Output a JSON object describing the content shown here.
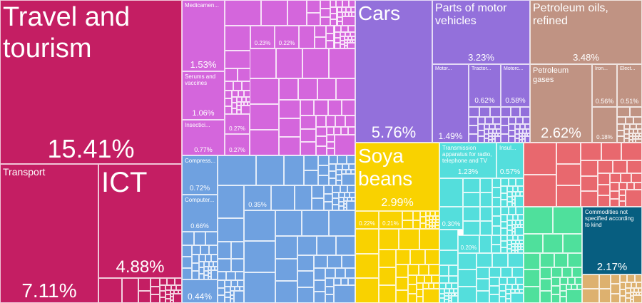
{
  "chart_data": {
    "type": "treemap",
    "unit": "%",
    "items": [
      {
        "label": "Travel and tourism",
        "value": 15.41,
        "color": "#C41E63"
      },
      {
        "label": "Transport",
        "value": 7.11,
        "color": "#C41E63"
      },
      {
        "label": "ICT",
        "value": 4.88,
        "color": "#C41E63"
      },
      {
        "label": "Medicamen...",
        "value": 1.53,
        "color": "#D466DC"
      },
      {
        "label": "Serums and vaccines",
        "value": 1.06,
        "color": "#D466DC"
      },
      {
        "label": "Insectici...",
        "value": 0.77,
        "color": "#D466DC"
      },
      {
        "label": "",
        "value": 0.23,
        "color": "#D466DC"
      },
      {
        "label": "",
        "value": 0.22,
        "color": "#D466DC"
      },
      {
        "label": "",
        "value": 0.27,
        "color": "#D466DC"
      },
      {
        "label": "",
        "value": 0.27,
        "color": "#D466DC"
      },
      {
        "label": "Compress...",
        "value": 0.72,
        "color": "#6FA1E0"
      },
      {
        "label": "Computer...",
        "value": 0.66,
        "color": "#6FA1E0"
      },
      {
        "label": "",
        "value": 0.44,
        "color": "#6FA1E0"
      },
      {
        "label": "",
        "value": 0.35,
        "color": "#6FA1E0"
      },
      {
        "label": "Cars",
        "value": 5.76,
        "color": "#9370DB"
      },
      {
        "label": "Parts of motor vehicles",
        "value": 3.23,
        "color": "#9370DB"
      },
      {
        "label": "Motor...",
        "value": 1.49,
        "color": "#9370DB"
      },
      {
        "label": "Tractor...",
        "value": 0.62,
        "color": "#9370DB"
      },
      {
        "label": "Motorc...",
        "value": 0.58,
        "color": "#9370DB"
      },
      {
        "label": "Soya beans",
        "value": 2.99,
        "color": "#F9D200"
      },
      {
        "label": "",
        "value": 0.22,
        "color": "#F9D200"
      },
      {
        "label": "",
        "value": 0.21,
        "color": "#F9D200"
      },
      {
        "label": "Transmission apparatus for radio, telephone and TV",
        "value": 1.23,
        "color": "#54DEDC"
      },
      {
        "label": "Insul...",
        "value": 0.57,
        "color": "#54DEDC"
      },
      {
        "label": "",
        "value": 0.3,
        "color": "#54DEDC"
      },
      {
        "label": "",
        "value": 0.2,
        "color": "#54DEDC"
      },
      {
        "label": "Petroleum oils, refined",
        "value": 3.48,
        "color": "#C09383"
      },
      {
        "label": "Petroleum gases",
        "value": 2.62,
        "color": "#C09383"
      },
      {
        "label": "Iron...",
        "value": 0.56,
        "color": "#C09383"
      },
      {
        "label": "Elect...",
        "value": 0.51,
        "color": "#C09383"
      },
      {
        "label": "",
        "value": 0.18,
        "color": "#C09383"
      },
      {
        "label": "Commodities not specified according to kind",
        "value": 2.17,
        "color": "#075E80"
      }
    ]
  }
}
